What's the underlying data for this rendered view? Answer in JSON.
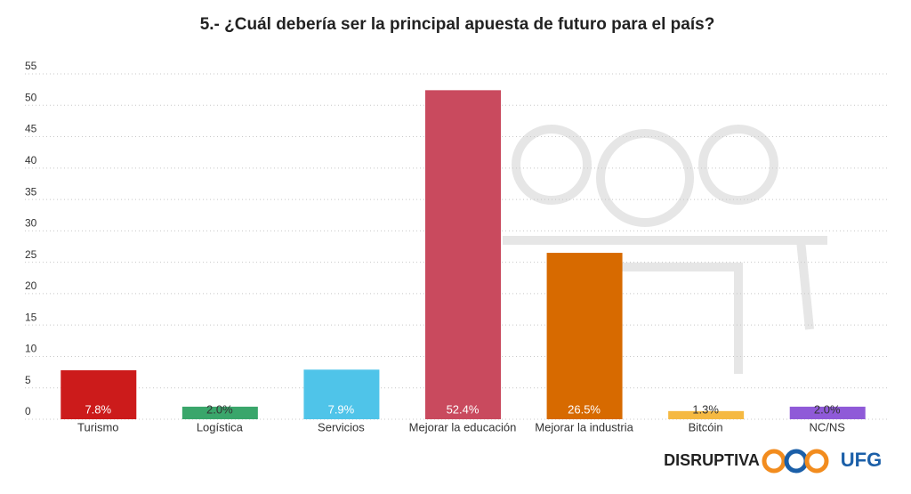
{
  "chart_data": {
    "type": "bar",
    "title": "5.- ¿Cuál debería ser la principal apuesta de futuro para el país?",
    "categories": [
      "Turismo",
      "Logística",
      "Servicios",
      "Mejorar la educación",
      "Mejorar la industria",
      "Bitcóin",
      "NC/NS"
    ],
    "values": [
      7.8,
      2.0,
      7.9,
      52.4,
      26.5,
      1.3,
      2.0
    ],
    "value_labels": [
      "7.8%",
      "2.0%",
      "7.9%",
      "52.4%",
      "26.5%",
      "1.3%",
      "2.0%"
    ],
    "colors": [
      "#cc1b1b",
      "#3aa66b",
      "#4fc4e9",
      "#c94a5e",
      "#d76a00",
      "#f5b942",
      "#8f5ad8"
    ],
    "ylim": [
      0,
      55
    ],
    "yticks": [
      0,
      5,
      10,
      15,
      20,
      25,
      30,
      35,
      40,
      45,
      50,
      55
    ],
    "grid": true
  },
  "logos": [
    "DISRUPTIVA",
    "UFG"
  ]
}
